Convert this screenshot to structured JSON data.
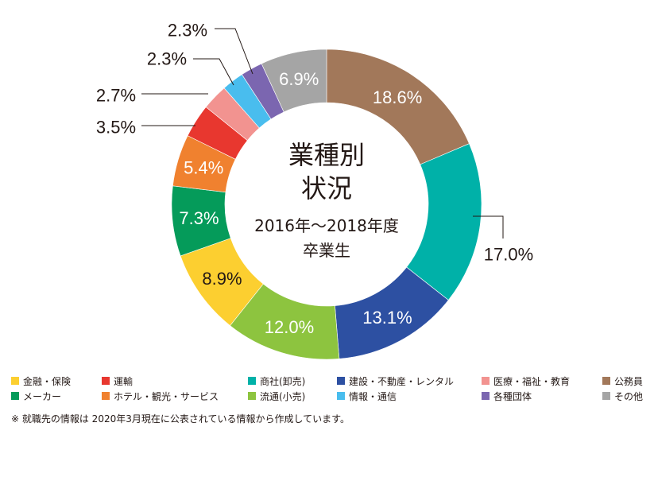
{
  "chart_data": {
    "type": "pie",
    "title_lines": [
      "業種別",
      "状況"
    ],
    "subtitle_lines": [
      "2016年〜2018年度",
      "卒業生"
    ],
    "slices": [
      {
        "label": "公務員",
        "value": 18.6,
        "display": "18.6%",
        "color": "#a2785a"
      },
      {
        "label": "商社(卸売)",
        "value": 17.0,
        "display": "17.0%",
        "color": "#00b1a8"
      },
      {
        "label": "建設・不動産・レンタル",
        "value": 13.1,
        "display": "13.1%",
        "color": "#2d50a2"
      },
      {
        "label": "流通(小売)",
        "value": 12.0,
        "display": "12.0%",
        "color": "#8dc43f"
      },
      {
        "label": "金融・保険",
        "value": 8.9,
        "display": "8.9%",
        "color": "#fccf30"
      },
      {
        "label": "メーカー",
        "value": 7.3,
        "display": "7.3%",
        "color": "#059b5a"
      },
      {
        "label": "ホテル・観光・サービス",
        "value": 5.4,
        "display": "5.4%",
        "color": "#f0812f"
      },
      {
        "label": "運輸",
        "value": 3.5,
        "display": "3.5%",
        "color": "#e8372f"
      },
      {
        "label": "医療・福祉・教育",
        "value": 2.7,
        "display": "2.7%",
        "color": "#f29390"
      },
      {
        "label": "情報・通信",
        "value": 2.3,
        "display": "2.3%",
        "color": "#49bdee"
      },
      {
        "label": "各種団体",
        "value": 2.3,
        "display": "2.3%",
        "color": "#7b66b0"
      },
      {
        "label": "その他",
        "value": 6.9,
        "display": "6.9%",
        "color": "#a5a5a5"
      }
    ]
  },
  "legend": [
    {
      "label": "金融・保険",
      "color": "#fccf30"
    },
    {
      "label": "運輸",
      "color": "#e8372f"
    },
    {
      "label": "商社(卸売)",
      "color": "#00b1a8"
    },
    {
      "label": "建設・不動産・レンタル",
      "color": "#2d50a2"
    },
    {
      "label": "医療・福祉・教育",
      "color": "#f29390"
    },
    {
      "label": "公務員",
      "color": "#a2785a"
    },
    {
      "label": "メーカー",
      "color": "#059b5a"
    },
    {
      "label": "ホテル・観光・サービス",
      "color": "#f0812f"
    },
    {
      "label": "流通(小売)",
      "color": "#8dc43f"
    },
    {
      "label": "情報・通信",
      "color": "#49bdee"
    },
    {
      "label": "各種団体",
      "color": "#7b66b0"
    },
    {
      "label": "その他",
      "color": "#a5a5a5"
    }
  ],
  "footnote": "※ 就職先の情報は 2020年3月現在に公表されている情報から作成しています。"
}
